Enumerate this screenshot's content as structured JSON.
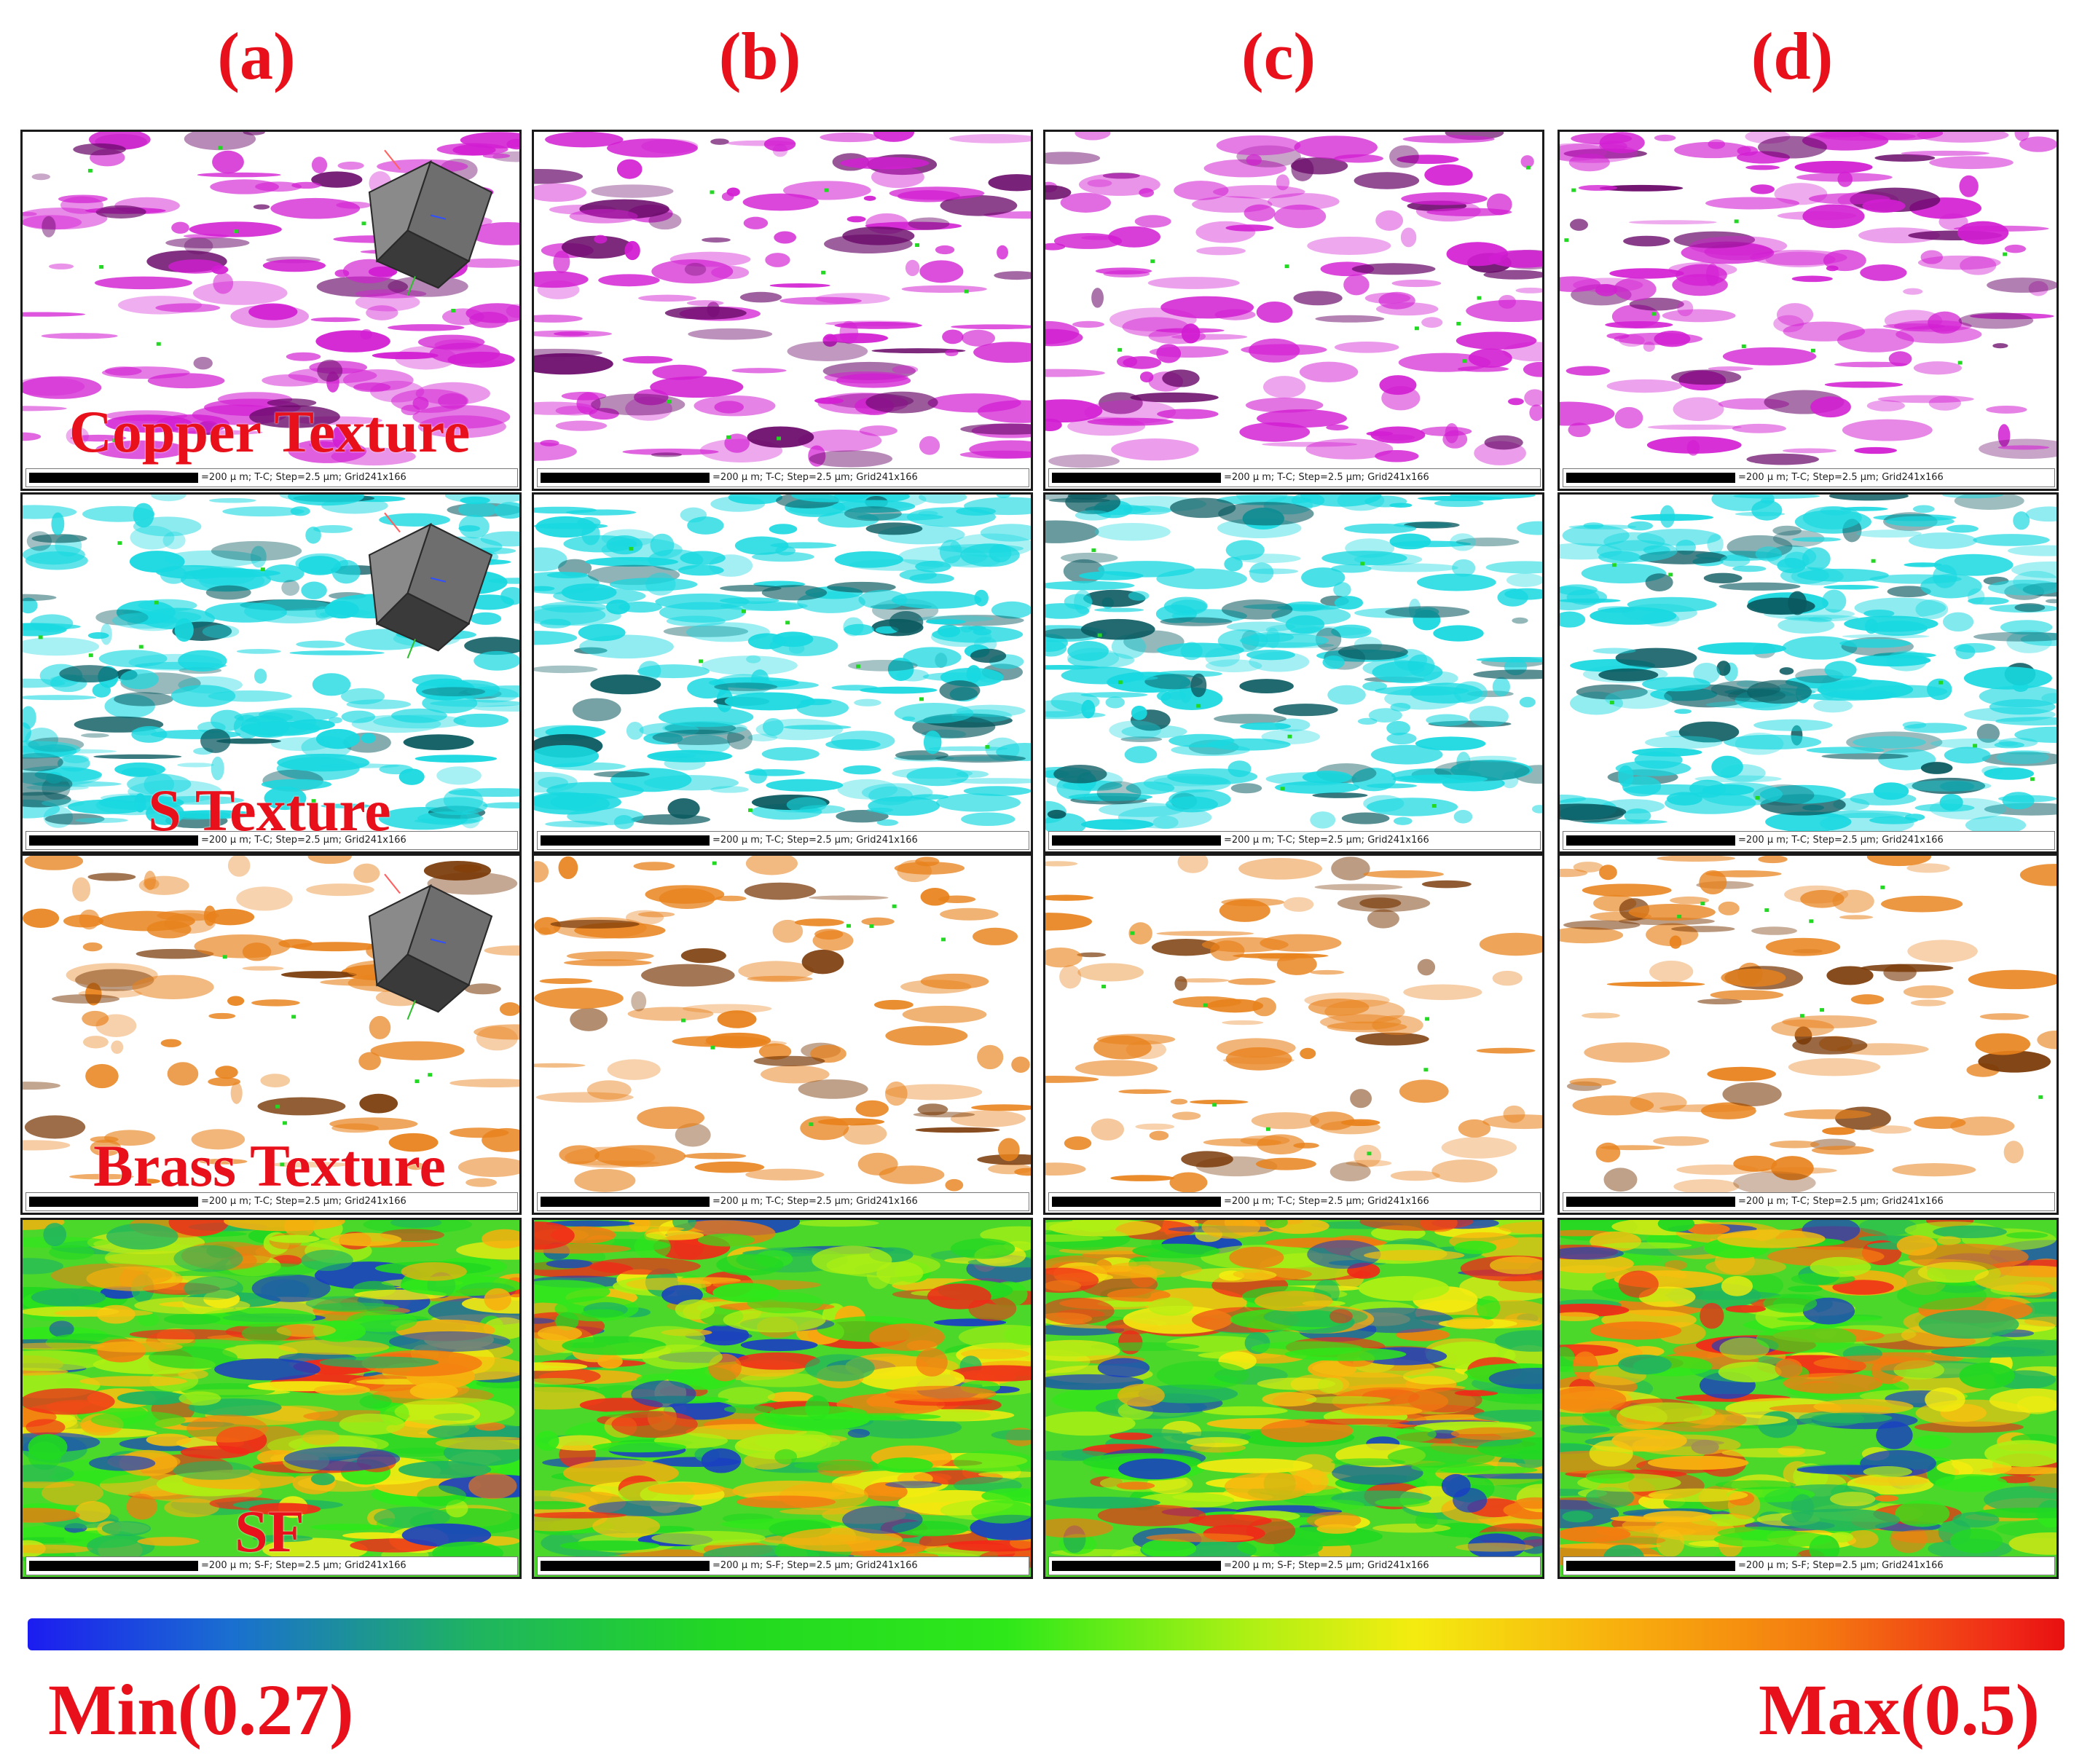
{
  "columns": [
    "(a)",
    "(b)",
    "(c)",
    "(d)"
  ],
  "rows": [
    {
      "label": "Copper Texture",
      "color": "#d21ed2",
      "dark": "#6a0a6a",
      "scale_text": "=200 µ m; T-C; Step=2.5 µm; Grid241x166"
    },
    {
      "label": "S Texture",
      "color": "#18d8e0",
      "dark": "#0a5a60",
      "scale_text": "=200 µ m; T-C; Step=2.5 µm; Grid241x166"
    },
    {
      "label": "Brass Texture",
      "color": "#e8821c",
      "dark": "#7a3a08",
      "scale_text": "=200 µ m; T-C; Step=2.5 µm; Grid241x166"
    },
    {
      "label": "SF",
      "color": "#22d822",
      "dark": "#1a40c0",
      "scale_text": "=200 µ m; S-F; Step=2.5 µm; Grid241x166"
    }
  ],
  "colorbar": {
    "min_label": "Min(0.27)",
    "max_label": "Max(0.5)"
  }
}
